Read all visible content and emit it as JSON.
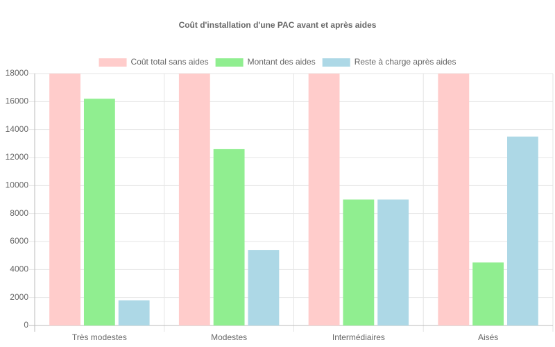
{
  "chart_data": {
    "type": "bar",
    "title": "Coût d'installation d'une PAC avant et après aides",
    "categories": [
      "Très modestes",
      "Modestes",
      "Intermédiaires",
      "Aisés"
    ],
    "series": [
      {
        "name": "Coût total sans aides",
        "color": "#ffcccb",
        "values": [
          18000,
          18000,
          18000,
          18000
        ]
      },
      {
        "name": "Montant des aides",
        "color": "#90ee90",
        "values": [
          16200,
          12600,
          9000,
          4500
        ]
      },
      {
        "name": "Reste à charge après aides",
        "color": "#add8e6",
        "values": [
          1800,
          5400,
          9000,
          13500
        ]
      }
    ],
    "ylim": [
      0,
      18000
    ],
    "yticks": [
      0,
      2000,
      4000,
      6000,
      8000,
      10000,
      12000,
      14000,
      16000,
      18000
    ],
    "grid": true,
    "legend": "top"
  }
}
